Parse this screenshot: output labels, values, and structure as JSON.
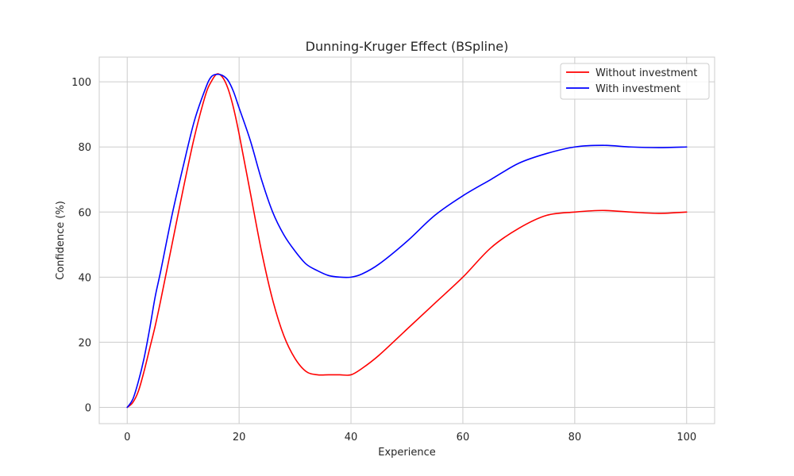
{
  "chart_data": {
    "type": "line",
    "title": "Dunning-Kruger Effect (BSpline)",
    "xlabel": "Experience",
    "ylabel": "Confidence (%)",
    "xlim": [
      -5,
      105
    ],
    "ylim": [
      -5,
      107.6
    ],
    "xticks": [
      0,
      20,
      40,
      60,
      80,
      100
    ],
    "yticks": [
      0,
      20,
      40,
      60,
      80,
      100
    ],
    "grid": true,
    "legend_position": "top-right",
    "series": [
      {
        "name": "Without investment",
        "color": "#ff0000",
        "x": [
          0,
          1,
          2,
          3,
          4,
          5,
          6,
          8,
          10,
          12,
          14,
          15,
          16,
          17,
          18,
          19,
          20,
          22,
          24,
          26,
          28,
          30,
          32,
          34,
          36,
          38,
          40,
          42,
          45,
          50,
          55,
          60,
          65,
          70,
          75,
          80,
          85,
          90,
          95,
          100
        ],
        "y": [
          0,
          1.5,
          5,
          11,
          18,
          25,
          33,
          50,
          67,
          83,
          96,
          100,
          102.4,
          101.5,
          98,
          92,
          84,
          66,
          48,
          33,
          22,
          15,
          11,
          10,
          10,
          10,
          10,
          12,
          16,
          24,
          32,
          40,
          49,
          55,
          59,
          60,
          60.5,
          60,
          59.6,
          60
        ]
      },
      {
        "name": "With investment",
        "color": "#0000ff",
        "x": [
          0,
          1,
          2,
          3,
          4,
          5,
          6,
          8,
          10,
          12,
          14,
          15,
          16,
          17,
          18,
          19,
          20,
          22,
          24,
          26,
          28,
          30,
          32,
          34,
          36,
          38,
          40,
          42,
          45,
          50,
          55,
          60,
          65,
          70,
          75,
          80,
          85,
          90,
          95,
          100
        ],
        "y": [
          0,
          2.5,
          8,
          15,
          24,
          34,
          42,
          59,
          74,
          88,
          98,
          101.5,
          102.3,
          102,
          100.5,
          97,
          92,
          82,
          70,
          60,
          53,
          48,
          44,
          42,
          40.5,
          40,
          40,
          41,
          44,
          51,
          59,
          65,
          70,
          75,
          78,
          80,
          80.5,
          80,
          79.8,
          80
        ]
      }
    ]
  }
}
